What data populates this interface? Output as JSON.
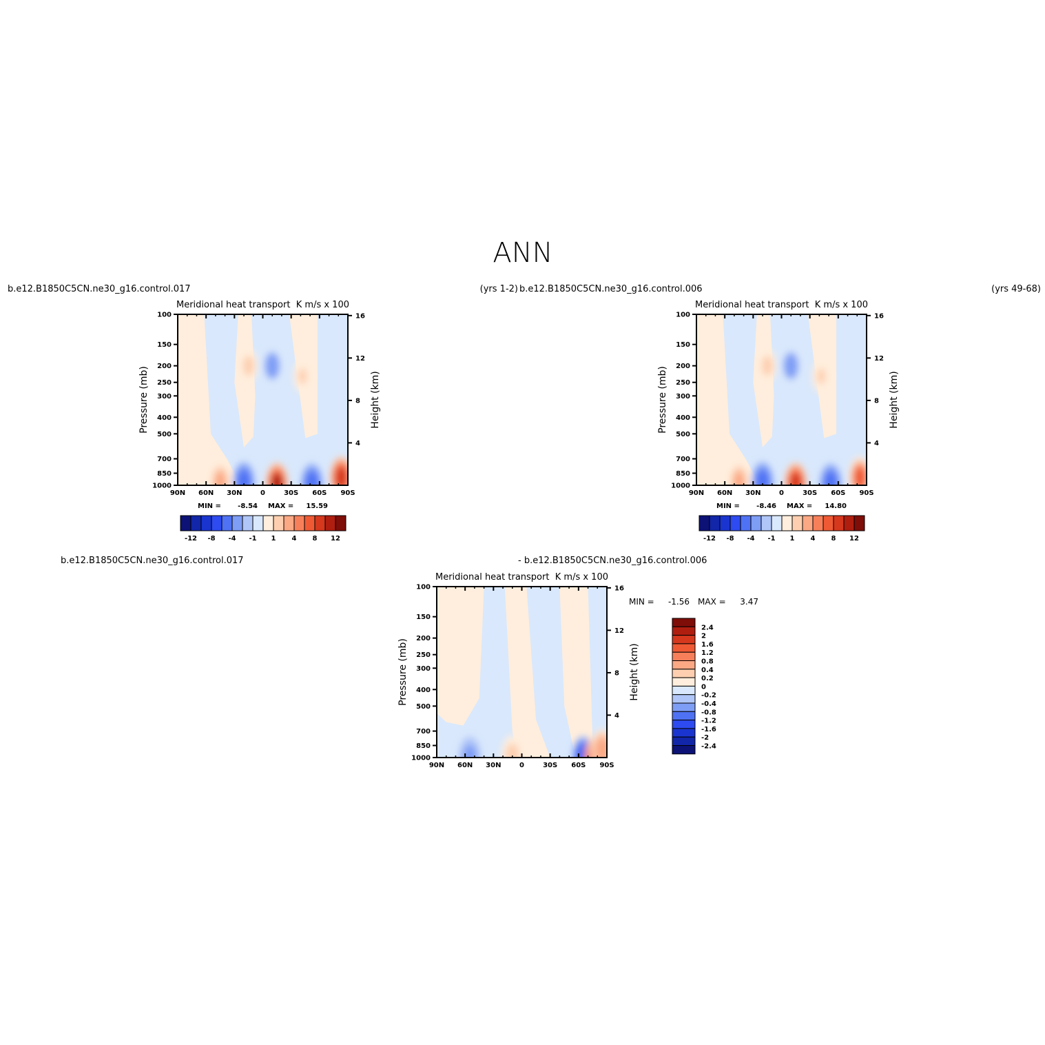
{
  "page": {
    "title": "ANN"
  },
  "colors": {
    "left_palette": [
      "#0c1276",
      "#1126a8",
      "#1a35cf",
      "#2d4bf0",
      "#4f72f4",
      "#7e9df5",
      "#b0c6f8",
      "#d9e8fc",
      "#ffeedd",
      "#fdcfb0",
      "#fba884",
      "#f7805a",
      "#ef5a34",
      "#d6381d",
      "#b01e10",
      "#7f0d08"
    ],
    "diff_palette": [
      "#0c1276",
      "#1126a8",
      "#1a35cf",
      "#2d4bf0",
      "#4f72f4",
      "#7e9df5",
      "#b0c6f8",
      "#d9e8fc",
      "#ffeedd",
      "#fdcfb0",
      "#fba884",
      "#f7805a",
      "#ef5a34",
      "#d6381d",
      "#b01e10",
      "#7f0d08"
    ],
    "axes": "#000000"
  },
  "panels": [
    {
      "case_label": "b.e12.B1850C5CN.ne30_g16.control.017",
      "years_label": "(yrs 1-2)",
      "var_title": "Meridional heat transport",
      "units": "K m/s x 100",
      "ylabel_left": "Pressure (mb)",
      "ylabel_right": "Height (km)",
      "stats": {
        "min_label": "MIN =",
        "min": "-8.54",
        "max_label": "MAX =",
        "max": "15.59"
      },
      "colorbar_labels": [
        "-12",
        "-8",
        "-4",
        "-1",
        "1",
        "4",
        "8",
        "12"
      ]
    },
    {
      "case_label": "b.e12.B1850C5CN.ne30_g16.control.006",
      "years_label": "(yrs 49-68)",
      "var_title": "Meridional heat transport",
      "units": "K m/s x 100",
      "ylabel_left": "Pressure (mb)",
      "ylabel_right": "Height (km)",
      "stats": {
        "min_label": "MIN =",
        "min": "-8.46",
        "max_label": "MAX =",
        "max": "14.80"
      },
      "colorbar_labels": [
        "-12",
        "-8",
        "-4",
        "-1",
        "1",
        "4",
        "8",
        "12"
      ]
    },
    {
      "case_label": "b.e12.B1850C5CN.ne30_g16.control.017",
      "case_label_2": "- b.e12.B1850C5CN.ne30_g16.control.006",
      "var_title": "Meridional heat transport",
      "units": "K m/s x 100",
      "ylabel_left": "Pressure (mb)",
      "ylabel_right": "Height (km)",
      "stats": {
        "min_label": "MIN =",
        "min": "-1.56",
        "max_label": "MAX =",
        "max": "3.47"
      },
      "colorbar_labels": [
        "2.4",
        "2",
        "1.6",
        "1.2",
        "0.8",
        "0.4",
        "0.2",
        "0",
        "-0.2",
        "-0.4",
        "-0.8",
        "-1.2",
        "-1.6",
        "-2",
        "-2.4"
      ]
    }
  ],
  "chart_data": [
    {
      "type": "heatmap",
      "title": "Meridional heat transport",
      "units": "K m/s x 100",
      "xlabel": "",
      "ylabel": "Pressure (mb)",
      "y2label": "Height (km)",
      "x_ticks": [
        "90N",
        "60N",
        "30N",
        "0",
        "30S",
        "60S",
        "90S"
      ],
      "x_values": [
        90,
        60,
        30,
        0,
        -30,
        -60,
        -90
      ],
      "y_ticks": [
        100,
        150,
        200,
        250,
        300,
        400,
        500,
        700,
        850,
        1000
      ],
      "y2_ticks": [
        16,
        12,
        8,
        4
      ],
      "y_scale": "log",
      "levels": [
        -14,
        -12,
        -10,
        -8,
        -6,
        -4,
        -2,
        -1,
        0,
        1,
        2,
        4,
        6,
        8,
        10,
        12,
        14
      ],
      "min": -8.54,
      "max": 15.59,
      "features": [
        {
          "lat": 75,
          "p": 1000,
          "value": 0.5
        },
        {
          "lat": 45,
          "p": 950,
          "value": 4
        },
        {
          "lat": 20,
          "p": 960,
          "value": -6
        },
        {
          "lat": -15,
          "p": 975,
          "value": 12
        },
        {
          "lat": -52,
          "p": 980,
          "value": -6
        },
        {
          "lat": -83,
          "p": 900,
          "value": 10
        },
        {
          "lat": 15,
          "p": 200,
          "value": 3
        },
        {
          "lat": -10,
          "p": 200,
          "value": -4
        },
        {
          "lat": -42,
          "p": 230,
          "value": 2
        }
      ]
    },
    {
      "type": "heatmap",
      "title": "Meridional heat transport",
      "units": "K m/s x 100",
      "xlabel": "",
      "ylabel": "Pressure (mb)",
      "y2label": "Height (km)",
      "x_ticks": [
        "90N",
        "60N",
        "30N",
        "0",
        "30S",
        "60S",
        "90S"
      ],
      "x_values": [
        90,
        60,
        30,
        0,
        -30,
        -60,
        -90
      ],
      "y_ticks": [
        100,
        150,
        200,
        250,
        300,
        400,
        500,
        700,
        850,
        1000
      ],
      "y2_ticks": [
        16,
        12,
        8,
        4
      ],
      "y_scale": "log",
      "levels": [
        -14,
        -12,
        -10,
        -8,
        -6,
        -4,
        -2,
        -1,
        0,
        1,
        2,
        4,
        6,
        8,
        10,
        12,
        14
      ],
      "min": -8.46,
      "max": 14.8,
      "features": [
        {
          "lat": 75,
          "p": 1000,
          "value": 0.5
        },
        {
          "lat": 45,
          "p": 950,
          "value": 4
        },
        {
          "lat": 20,
          "p": 960,
          "value": -6
        },
        {
          "lat": -15,
          "p": 975,
          "value": 11
        },
        {
          "lat": -52,
          "p": 980,
          "value": -6
        },
        {
          "lat": -83,
          "p": 900,
          "value": 9
        },
        {
          "lat": 15,
          "p": 200,
          "value": 3
        },
        {
          "lat": -10,
          "p": 200,
          "value": -4
        },
        {
          "lat": -42,
          "p": 230,
          "value": 2
        }
      ]
    },
    {
      "type": "heatmap",
      "title": "Meridional heat transport",
      "units": "K m/s x 100",
      "xlabel": "",
      "ylabel": "Pressure (mb)",
      "y2label": "Height (km)",
      "x_ticks": [
        "90N",
        "60N",
        "30N",
        "0",
        "30S",
        "60S",
        "90S"
      ],
      "x_values": [
        90,
        60,
        30,
        0,
        -30,
        -60,
        -90
      ],
      "y_ticks": [
        100,
        150,
        200,
        250,
        300,
        400,
        500,
        700,
        850,
        1000
      ],
      "y2_ticks": [
        16,
        12,
        8,
        4
      ],
      "y_scale": "log",
      "levels": [
        -2.4,
        -2,
        -1.6,
        -1.2,
        -0.8,
        -0.4,
        -0.2,
        0,
        0.2,
        0.4,
        0.8,
        1.2,
        1.6,
        2,
        2.4
      ],
      "min": -1.56,
      "max": 3.47,
      "features": [
        {
          "lat": 55,
          "p": 1000,
          "value": -0.3
        },
        {
          "lat": -65,
          "p": 990,
          "value": -0.9
        },
        {
          "lat": -78,
          "p": 995,
          "value": 1.5
        },
        {
          "lat": -85,
          "p": 900,
          "value": 0.5
        },
        {
          "lat": 10,
          "p": 980,
          "value": 0.3
        }
      ]
    }
  ]
}
